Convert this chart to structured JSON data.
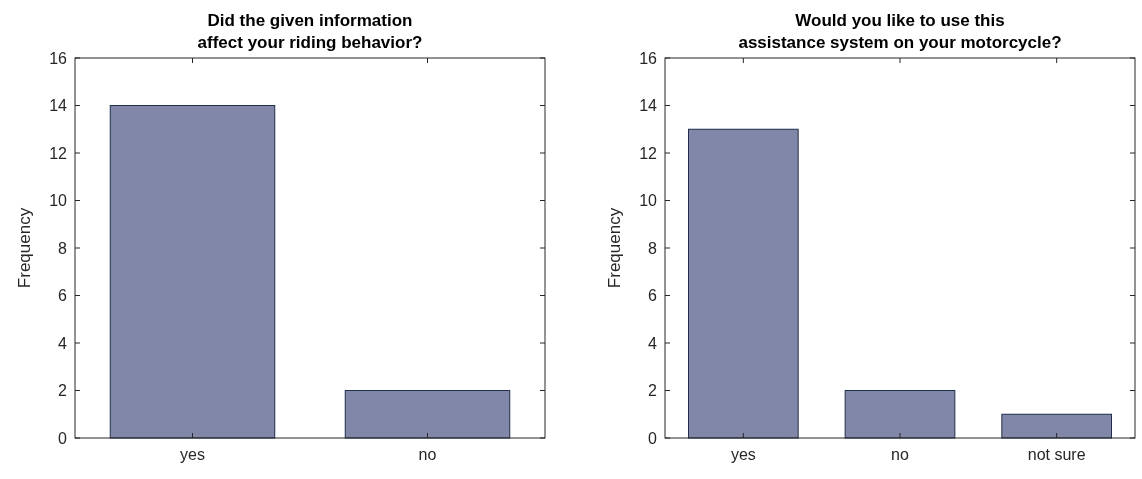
{
  "chart_data": [
    {
      "type": "bar",
      "title": "Did the given information\naffect your riding behavior?",
      "ylabel": "Frequency",
      "categories": [
        "yes",
        "no"
      ],
      "values": [
        14,
        2
      ],
      "color": "#8087a8",
      "ylim": [
        0,
        16
      ],
      "yticks": [
        0,
        2,
        4,
        6,
        8,
        10,
        12,
        14,
        16
      ],
      "grid": false
    },
    {
      "type": "bar",
      "title": "Would you like to use this\nassistance system on your motorcycle?",
      "ylabel": "Frequency",
      "categories": [
        "yes",
        "no",
        "not sure"
      ],
      "values": [
        13,
        2,
        1
      ],
      "color": "#8087a8",
      "ylim": [
        0,
        16
      ],
      "yticks": [
        0,
        2,
        4,
        6,
        8,
        10,
        12,
        14,
        16
      ],
      "grid": false
    }
  ]
}
